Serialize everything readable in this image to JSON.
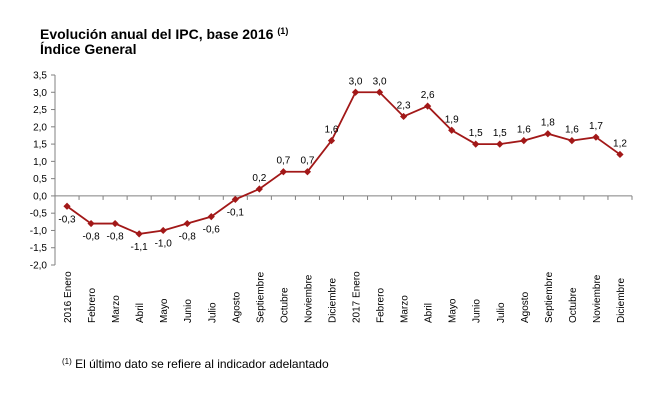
{
  "header": {
    "title": "Evolución anual del IPC, base 2016",
    "title_ref": "(1)",
    "subtitle": "Índice General"
  },
  "footnote": {
    "ref": "(1)",
    "text": "El último dato se refiere al indicador adelantado"
  },
  "chart_data": {
    "type": "line",
    "title": "Evolución anual del IPC, base 2016",
    "subtitle": "Índice General",
    "categories": [
      "2016 Enero",
      "Febrero",
      "Marzo",
      "Abril",
      "Mayo",
      "Junio",
      "Julio",
      "Agosto",
      "Septiembre",
      "Octubre",
      "Noviembre",
      "Diciembre",
      "2017 Enero",
      "Febrero",
      "Marzo",
      "Abril",
      "Mayo",
      "Junio",
      "Julio",
      "Agosto",
      "Septiembre",
      "Octubre",
      "Noviembre",
      "Diciembre"
    ],
    "values": [
      -0.3,
      -0.8,
      -0.8,
      -1.1,
      -1.0,
      -0.8,
      -0.6,
      -0.1,
      0.2,
      0.7,
      0.7,
      1.6,
      3.0,
      3.0,
      2.3,
      2.6,
      1.9,
      1.5,
      1.5,
      1.6,
      1.8,
      1.6,
      1.7,
      1.2
    ],
    "data_labels": [
      "-0,3",
      "-0,8",
      "-0,8",
      "-1,1",
      "-1,0",
      "-0,8",
      "-0,6",
      "-0,1",
      "0,2",
      "0,7",
      "0,7",
      "1,6",
      "3,0",
      "3,0",
      "2,3",
      "2,6",
      "1,9",
      "1,5",
      "1,5",
      "1,6",
      "1,8",
      "1,6",
      "1,7",
      "1,2"
    ],
    "ylim": [
      -2.0,
      3.5
    ],
    "y_ticks": [
      3.5,
      3.0,
      2.5,
      2.0,
      1.5,
      1.0,
      0.5,
      0.0,
      -0.5,
      -1.0,
      -1.5,
      -2.0
    ],
    "y_tick_labels": [
      "3,5",
      "3,0",
      "2,5",
      "2,0",
      "1,5",
      "1,0",
      "0,5",
      "0,0",
      "-0,5",
      "-1,0",
      "-1,5",
      "-2,0"
    ],
    "grid": false,
    "legend": "none",
    "line_color": "#A21818"
  }
}
